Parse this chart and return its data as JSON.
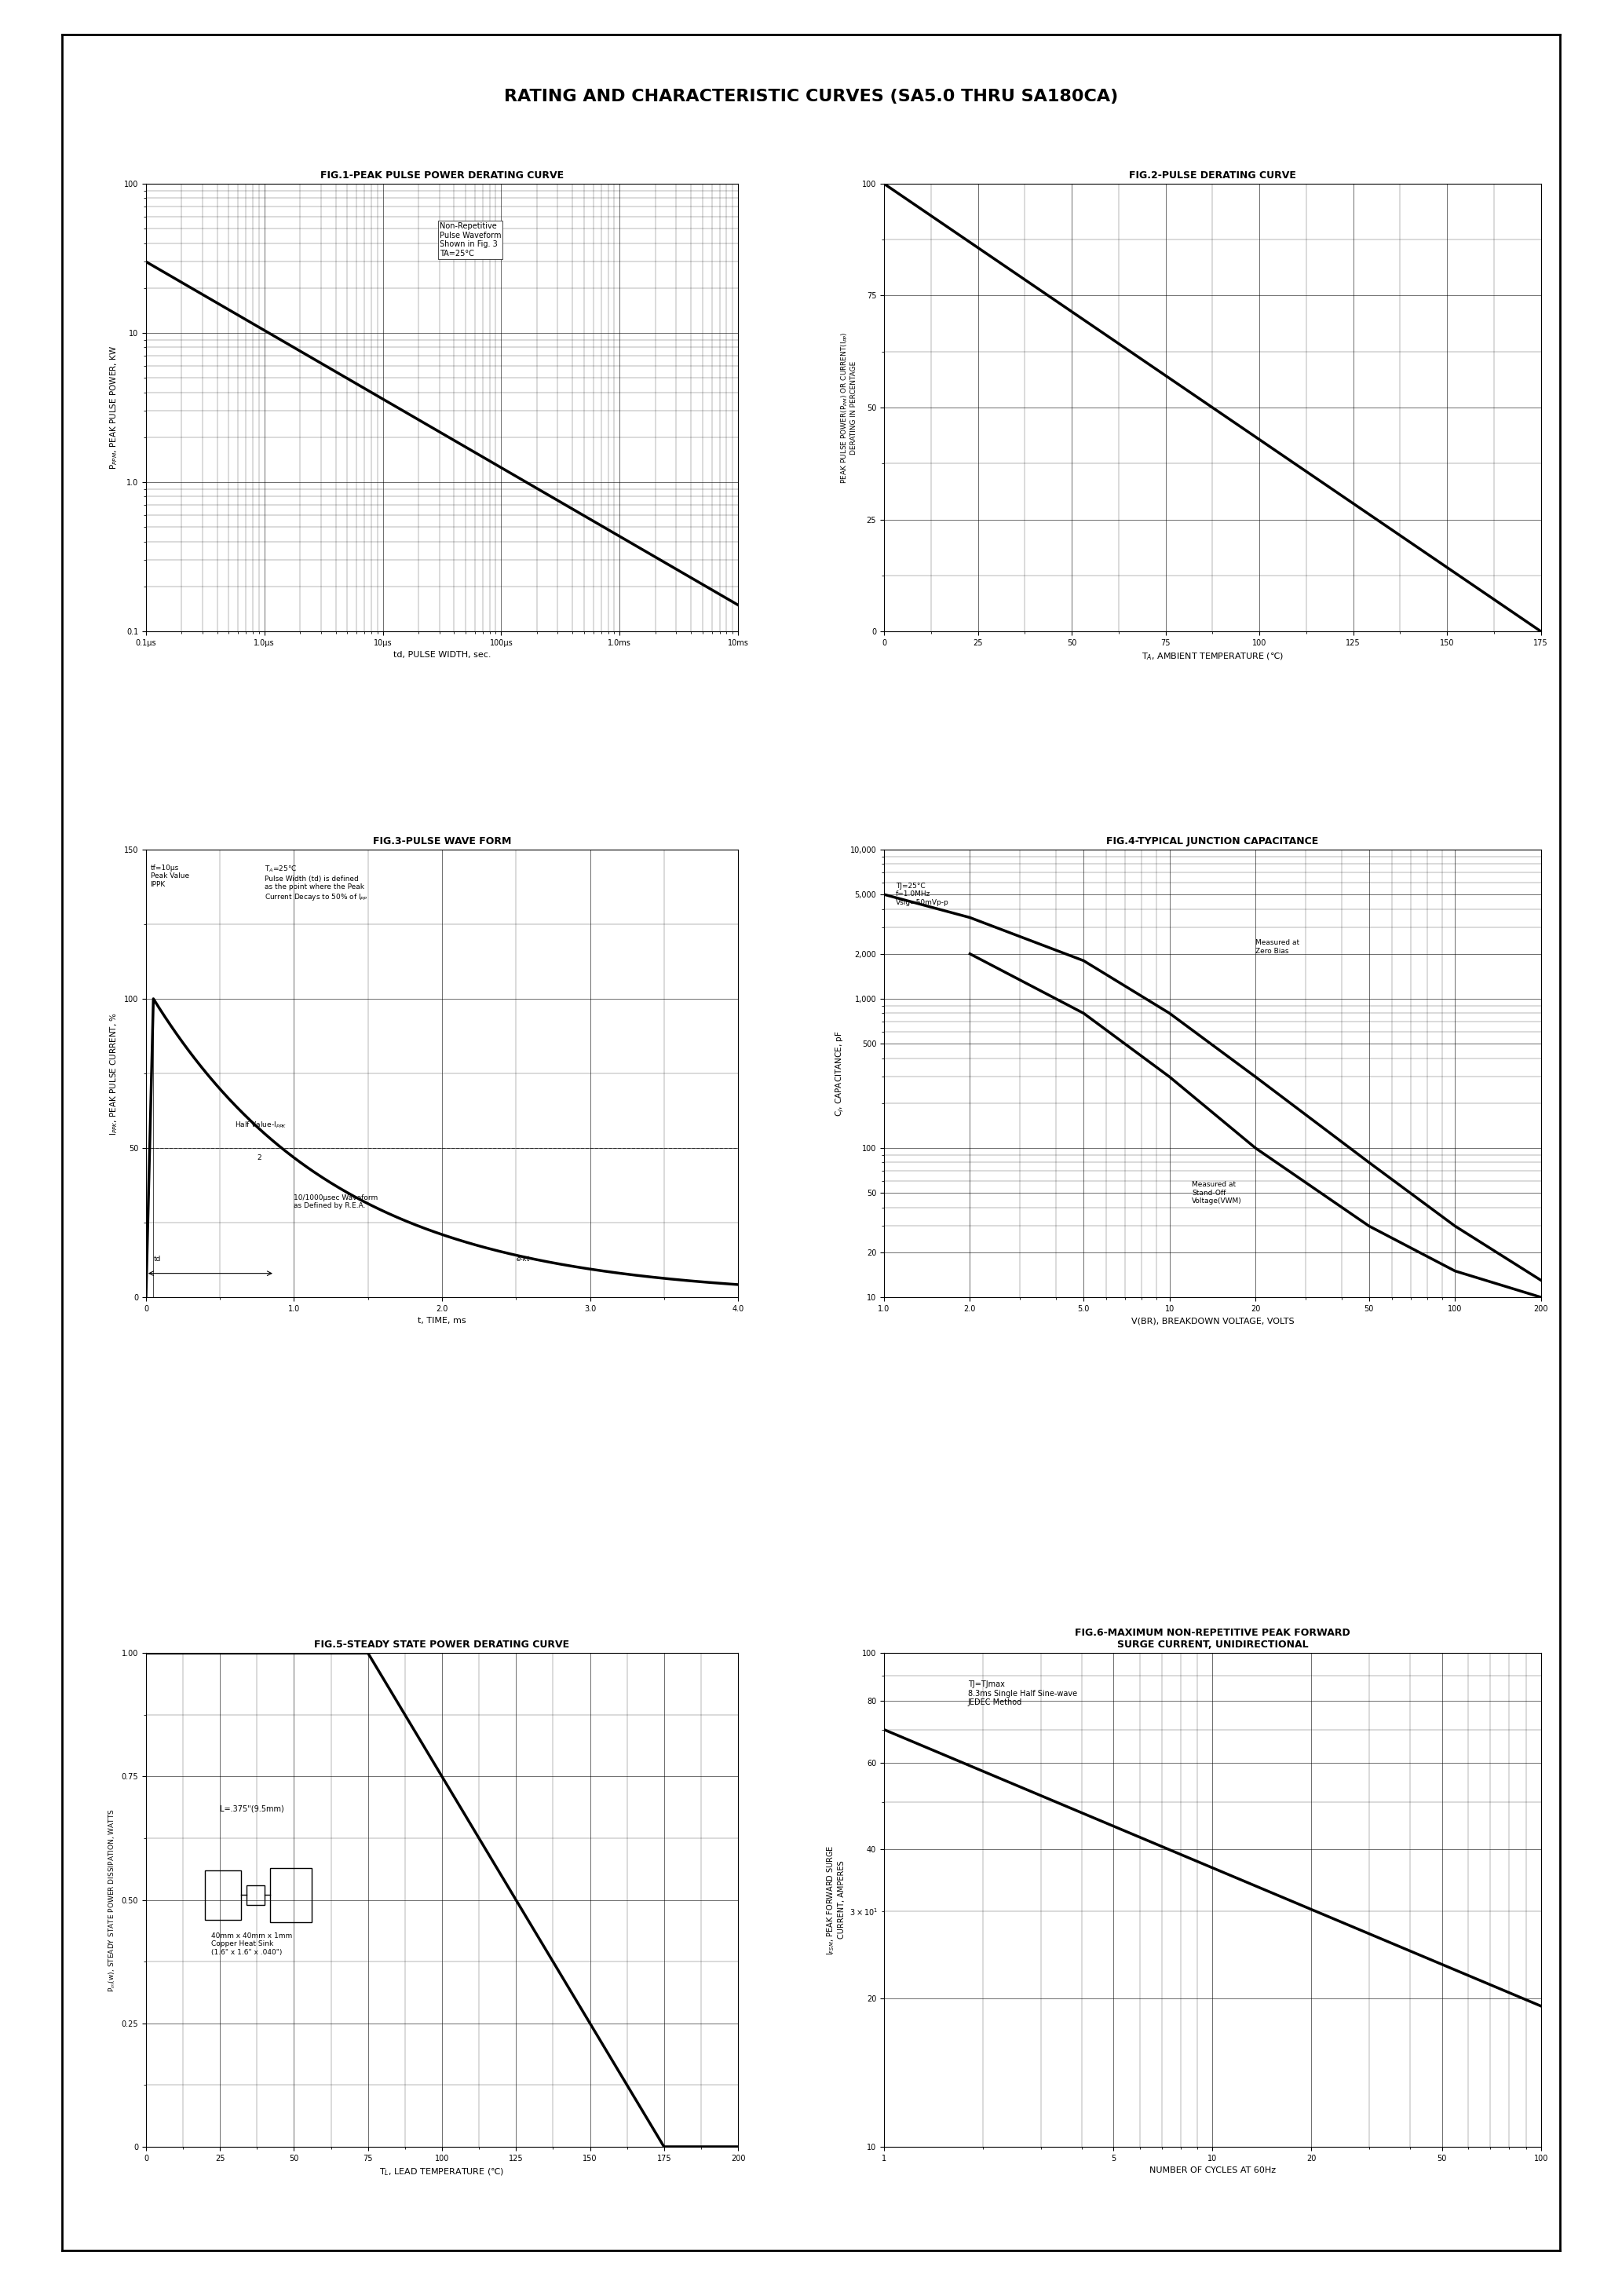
{
  "title": "RATING AND CHARACTERISTIC CURVES (SA5.0 THRU SA180CA)",
  "fig1_title": "FIG.1-PEAK PULSE POWER DERATING CURVE",
  "fig2_title": "FIG.2-PULSE DERATING CURVE",
  "fig3_title": "FIG.3-PULSE WAVE FORM",
  "fig4_title": "FIG.4-TYPICAL JUNCTION CAPACITANCE",
  "fig5_title": "FIG.5-STEADY STATE POWER DERATING CURVE",
  "fig6_title": "FIG.6-MAXIMUM NON-REPETITIVE PEAK FORWARD\nSURGE CURRENT, UNIDIRECTIONAL",
  "fig1_xlabel": "td, PULSE WIDTH, sec.",
  "fig2_xlabel": "TA, AMBIENT TEMPERATURE (℃)",
  "fig3_xlabel": "t, TIME, ms",
  "fig4_xlabel": "V(BR), BREAKDOWN VOLTAGE, VOLTS",
  "fig5_xlabel": "TL, LEAD TEMPERATURE (℃)",
  "fig6_xlabel": "NUMBER OF CYCLES AT 60Hz",
  "fig1_annotation": "Non-Repetitive\nPulse Waveform\nShown in Fig. 3\nTA=25°C",
  "fig4_annot1": "TJ=25°C\nf=1.0MHz\nVsig=50mVp-p",
  "fig4_annot2": "Measured at\nZero Bias",
  "fig4_annot3": "Measured at\nStand-Off\nVoltage(VWM)",
  "fig5_annot1": "L=.375\"(9.5mm)",
  "fig5_annot2": "40mm x 40mm x 1mm\nCopper Heat Sink\n(1.6\" x 1.6\" x .040\")",
  "fig6_annot1": "TJ=TJmax\n8.3ms Single Half Sine-wave\nJEDEC Method",
  "fig3_annot1": "tf=10μs\nPeak Value\nIPPK",
  "fig3_annot2": "TA=25°C\nPulse Width (td) is defined\nas the point where the Peak\nCurrent Decays to 50% of IPP",
  "fig3_annot3": "Half Value-IPPK\n        2",
  "fig3_annot4": "10/1000μsec Waveform\nas Defined by R.E.A.",
  "border_lw": 2.0,
  "curve_lw": 2.5
}
